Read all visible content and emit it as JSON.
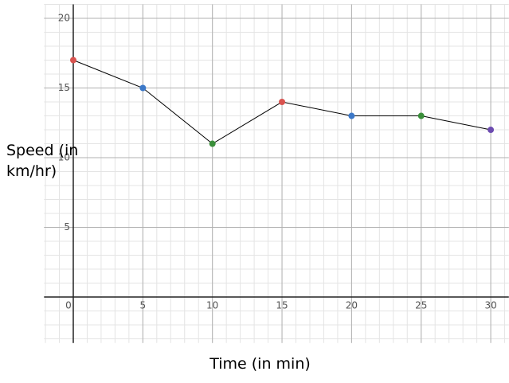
{
  "chart_data": {
    "type": "line",
    "xlabel": "Time (in min)",
    "ylabel": "Speed (in km/hr)",
    "x": [
      0,
      5,
      10,
      15,
      20,
      25,
      30
    ],
    "series": [
      {
        "color": "#000000",
        "values": [
          17,
          15,
          11,
          14,
          13,
          13,
          12
        ],
        "point_colors": [
          "#d9534f",
          "#3c78c8",
          "#3a8f3a",
          "#d9534f",
          "#3c78c8",
          "#3a8f3a",
          "#6c4bb0"
        ]
      }
    ],
    "xlim": [
      -2.1,
      31.3
    ],
    "ylim": [
      -3.3,
      21
    ],
    "xticks": [
      0,
      5,
      10,
      15,
      20,
      25,
      30
    ],
    "yticks": [
      5,
      10,
      15,
      20
    ],
    "grid": true,
    "minor_grid": true
  }
}
